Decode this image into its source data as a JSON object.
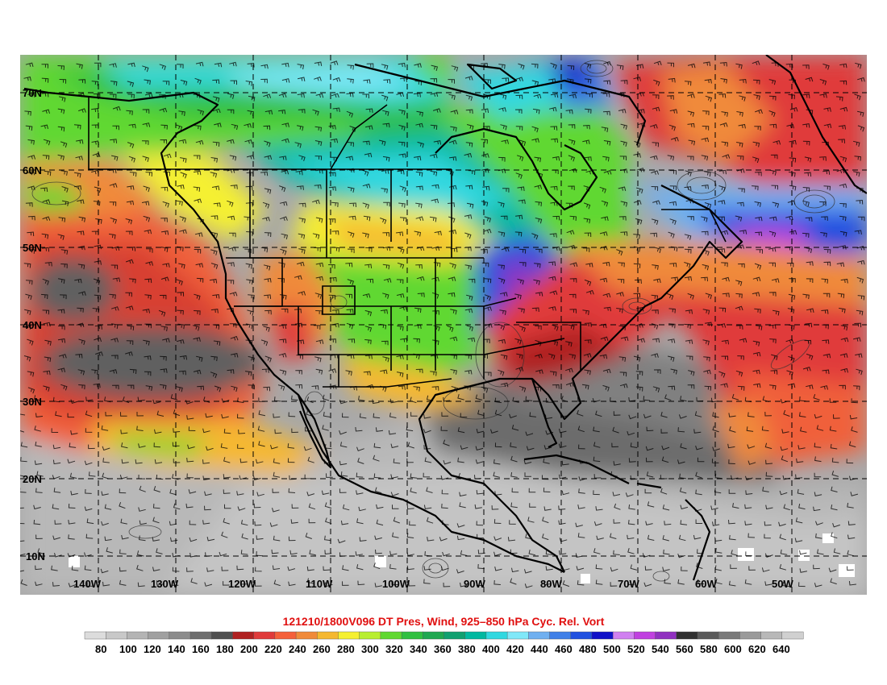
{
  "title": "121210/1800V096 DT Pres, Wind, 925–850 hPa Cyc. Rel. Vort",
  "latitudes": [
    "70N",
    "60N",
    "50N",
    "40N",
    "30N",
    "20N",
    "10N"
  ],
  "longitudes": [
    "140W",
    "130W",
    "120W",
    "110W",
    "100W",
    "90W",
    "80W",
    "70W",
    "60W",
    "50W"
  ],
  "colorbar": {
    "labels": [
      "80",
      "100",
      "120",
      "140",
      "160",
      "180",
      "200",
      "220",
      "240",
      "260",
      "280",
      "300",
      "320",
      "340",
      "360",
      "380",
      "400",
      "420",
      "440",
      "460",
      "480",
      "500",
      "520",
      "540",
      "560",
      "580",
      "600",
      "620",
      "640"
    ],
    "colors": [
      "#dcdcdc",
      "#c8c8c8",
      "#b4b4b4",
      "#a0a0a0",
      "#8c8c8c",
      "#6e6e6e",
      "#505050",
      "#b02020",
      "#e03a3a",
      "#f5603a",
      "#f08a3a",
      "#f5b830",
      "#f5f030",
      "#b8ee30",
      "#60d830",
      "#30c040",
      "#20a850",
      "#10a070",
      "#00b8a0",
      "#30d8e0",
      "#80e8f8",
      "#70b0f0",
      "#4080e8",
      "#2050e0",
      "#1010c8",
      "#d080f0",
      "#c040e0",
      "#9030c0",
      "#303030",
      "#5a5a5a",
      "#7a7a7a",
      "#9a9a9a",
      "#b8b8b8",
      "#d0d0d0"
    ]
  },
  "fields": {
    "dt_pressure_units": "hPa",
    "wind_display": "barbs",
    "vorticity_display": "contours"
  }
}
